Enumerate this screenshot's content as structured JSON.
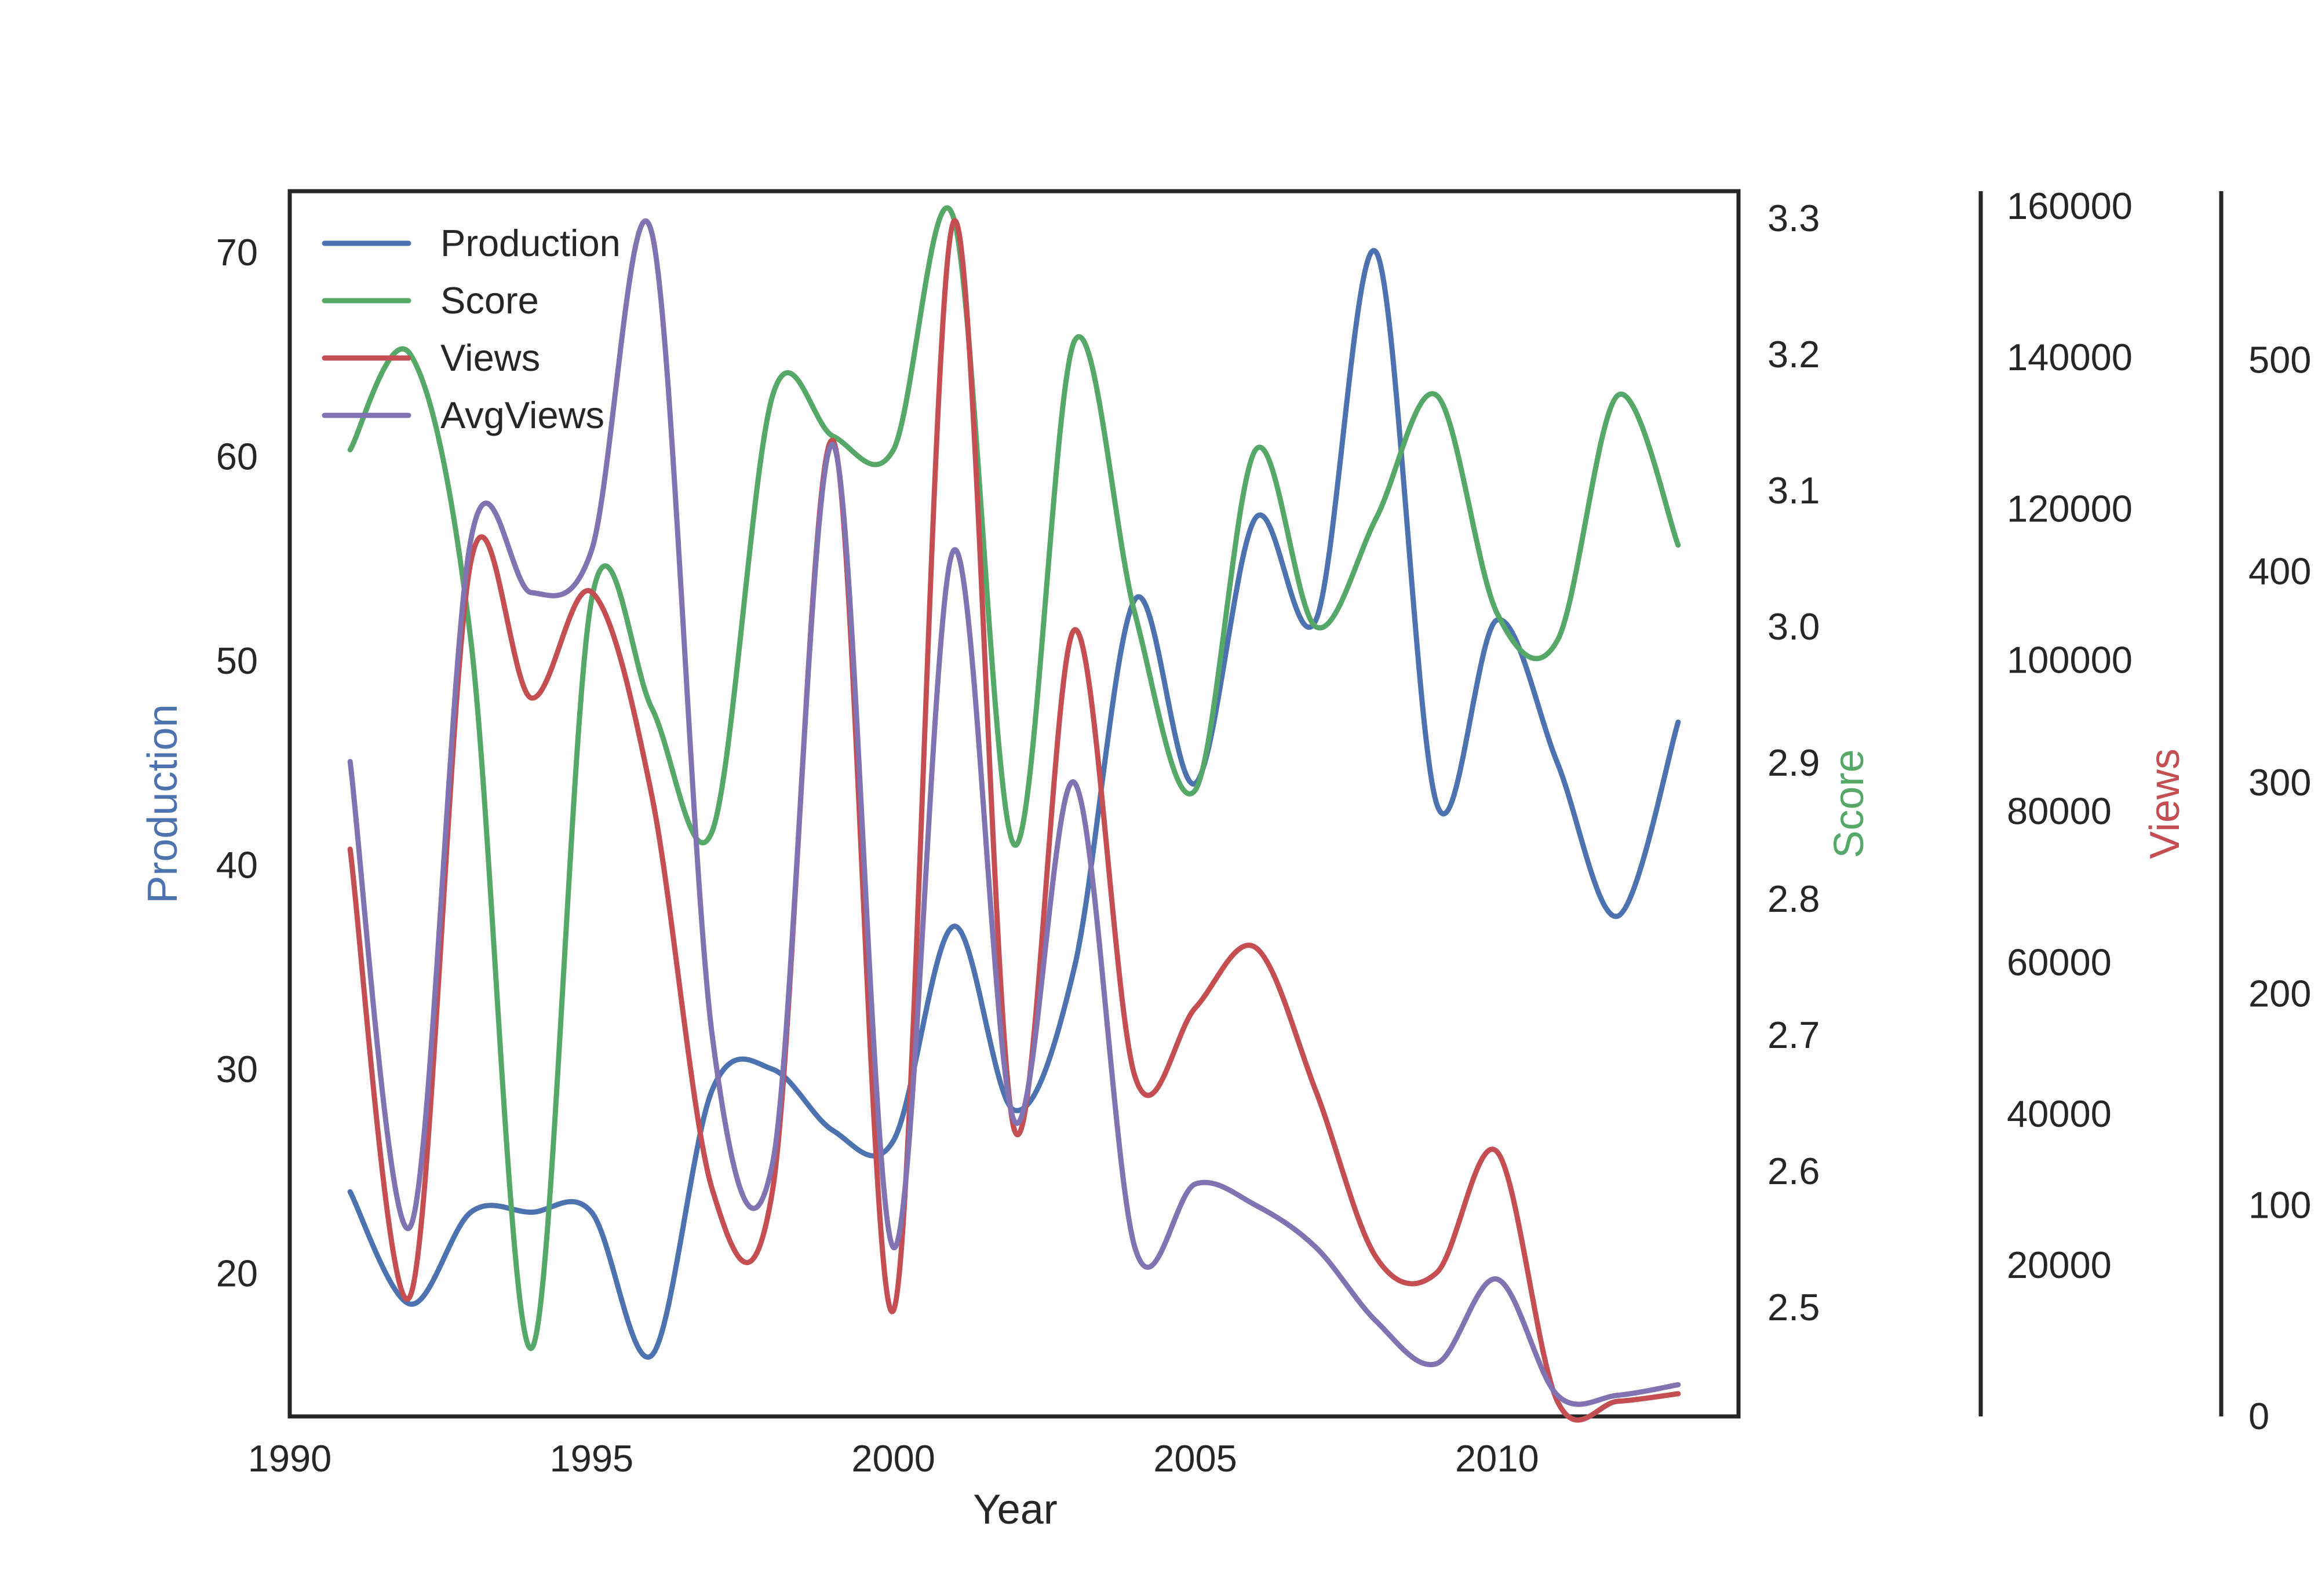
{
  "chart_data": {
    "type": "line",
    "title": "",
    "xlabel": "Year",
    "xlim": [
      1990,
      2014
    ],
    "x_ticks": [
      1990,
      1995,
      2000,
      2005,
      2010
    ],
    "x": [
      1991,
      1992,
      1993,
      1994,
      1995,
      1996,
      1997,
      1998,
      1999,
      2000,
      2001,
      2002,
      2003,
      2004,
      2005,
      2006,
      2007,
      2008,
      2009,
      2010,
      2011,
      2012,
      2013
    ],
    "legend": {
      "placement": "top-left",
      "entries": [
        "Production",
        "Score",
        "Views",
        "AvgViews"
      ]
    },
    "grid": false,
    "axes": [
      {
        "id": "production",
        "label": "Production",
        "position": "left",
        "color": "#4c72b0",
        "ylim": [
          13,
          73
        ],
        "ticks": [
          20,
          30,
          40,
          50,
          60,
          70
        ]
      },
      {
        "id": "score",
        "label": "Score",
        "position": "right",
        "color": "#55a868",
        "ylim": [
          2.42,
          3.32
        ],
        "ticks": [
          2.5,
          2.6,
          2.7,
          2.8,
          2.9,
          3.0,
          3.1,
          3.2,
          3.3
        ],
        "tick_labels": [
          "2.5",
          "2.6",
          "2.7",
          "2.8",
          "2.9",
          "3.0",
          "3.1",
          "3.2",
          "3.3"
        ]
      },
      {
        "id": "views",
        "label": "Views",
        "position": "right-offset-1",
        "color": "#c44e52",
        "ylim": [
          1,
          162000
        ],
        "ticks": [
          20000,
          40000,
          60000,
          80000,
          100000,
          120000,
          140000,
          160000
        ]
      },
      {
        "id": "avgviews",
        "label": "",
        "position": "right-offset-2",
        "color": "#8172b2",
        "ylim": [
          0,
          580
        ],
        "ticks": [
          0,
          100,
          200,
          300,
          400,
          500
        ],
        "tick_labels": [
          "0",
          "100",
          "200",
          "300",
          "400",
          "500"
        ]
      }
    ],
    "series": [
      {
        "name": "Production",
        "axis": "production",
        "color": "#4c72b0",
        "values": [
          24,
          18.5,
          23,
          23,
          23,
          16,
          29,
          30,
          27,
          26.5,
          37,
          28,
          35,
          53,
          44,
          57,
          52,
          70,
          43,
          52,
          45,
          37.5,
          47
        ]
      },
      {
        "name": "Score",
        "axis": "score",
        "color": "#55a868",
        "values": [
          3.13,
          3.2,
          2.99,
          2.47,
          3.02,
          2.94,
          2.85,
          3.17,
          3.14,
          3.13,
          3.3,
          2.84,
          3.21,
          3.01,
          2.88,
          3.13,
          3.0,
          3.08,
          3.17,
          3.01,
          2.99,
          3.17,
          3.06
        ]
      },
      {
        "name": "Views",
        "axis": "views",
        "color": "#c44e52",
        "values": [
          75000,
          16000,
          113000,
          95000,
          109000,
          82000,
          30000,
          30000,
          129000,
          14000,
          158000,
          38000,
          104000,
          45000,
          54000,
          62000,
          43000,
          21000,
          19000,
          35000,
          2000,
          2000,
          3000
        ]
      },
      {
        "name": "AvgViews",
        "axis": "avgviews",
        "color": "#8172b2",
        "values": [
          310,
          90,
          415,
          390,
          410,
          560,
          180,
          120,
          460,
          80,
          410,
          140,
          300,
          80,
          110,
          100,
          80,
          45,
          25,
          65,
          10,
          10,
          15
        ]
      }
    ]
  }
}
